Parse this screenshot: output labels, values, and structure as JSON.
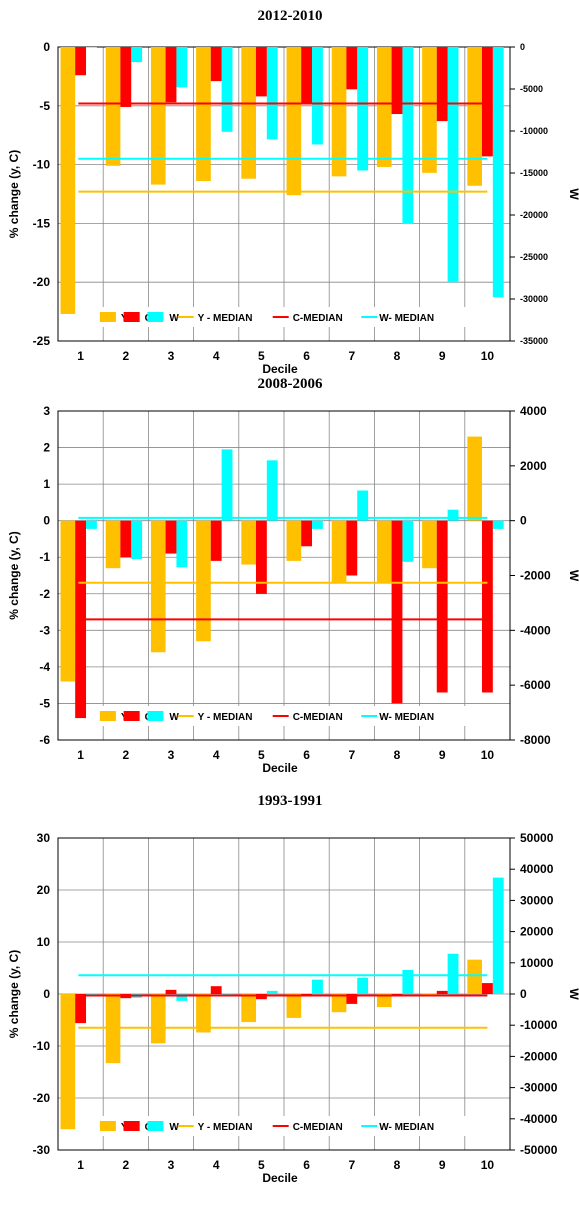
{
  "colors": {
    "Y": "#FFC000",
    "C": "#FF0000",
    "W": "#00FFFF",
    "grid": "#888888"
  },
  "chart_data": [
    {
      "type": "bar",
      "title": "2012-2010",
      "xlabel": "Decile",
      "ylabel": "% change (y, C)",
      "y2label": "W",
      "categories": [
        "1",
        "2",
        "3",
        "4",
        "5",
        "6",
        "7",
        "8",
        "9",
        "10"
      ],
      "ylim": [
        -25,
        0
      ],
      "yticks": [
        0,
        -5,
        -10,
        -15,
        -20,
        -25
      ],
      "y2lim": [
        -35000,
        0
      ],
      "y2ticks": [
        0,
        -5000,
        -10000,
        -15000,
        -20000,
        -25000,
        -30000,
        -35000
      ],
      "y2_small_font": true,
      "series": [
        {
          "name": "Y",
          "axis": "left",
          "values": [
            -22.7,
            -10.1,
            -11.7,
            -11.4,
            -11.2,
            -12.6,
            -11.0,
            -10.2,
            -10.7,
            -11.8
          ]
        },
        {
          "name": "C",
          "axis": "left",
          "values": [
            -2.4,
            -5.1,
            -4.7,
            -2.9,
            -4.2,
            -4.8,
            -3.6,
            -5.7,
            -6.3,
            -9.3
          ]
        },
        {
          "name": "W",
          "axis": "right",
          "values": [
            0,
            -1800,
            -4800,
            -10100,
            -11000,
            -11600,
            -14700,
            -21000,
            -28000,
            -29800
          ]
        }
      ],
      "medians": [
        {
          "name": "Y - MEDIAN",
          "axis": "left",
          "value": -12.3
        },
        {
          "name": "C-MEDIAN",
          "axis": "left",
          "value": -4.8
        },
        {
          "name": "W- MEDIAN",
          "axis": "right",
          "value": -13300
        }
      ],
      "legend_placement": "bottom"
    },
    {
      "type": "bar",
      "title": "2008-2006",
      "xlabel": "Decile",
      "ylabel": "% change (y, C)",
      "y2label": "W",
      "categories": [
        "1",
        "2",
        "3",
        "4",
        "5",
        "6",
        "7",
        "8",
        "9",
        "10"
      ],
      "ylim": [
        -6,
        3
      ],
      "yticks": [
        3,
        2,
        1,
        0,
        -1,
        -2,
        -3,
        -4,
        -5,
        -6
      ],
      "y2lim": [
        -8000,
        4000
      ],
      "y2ticks": [
        4000,
        2000,
        0,
        -2000,
        -4000,
        -6000,
        -8000
      ],
      "y2_small_font": false,
      "series": [
        {
          "name": "Y",
          "axis": "left",
          "values": [
            -4.4,
            -1.3,
            -3.6,
            -3.3,
            -1.2,
            -1.1,
            -1.7,
            -1.7,
            -1.3,
            2.3
          ]
        },
        {
          "name": "C",
          "axis": "left",
          "values": [
            -5.4,
            -1.0,
            -0.9,
            -1.1,
            -2.0,
            -0.7,
            -1.5,
            -5.0,
            -4.7,
            -4.7
          ]
        },
        {
          "name": "W",
          "axis": "right",
          "values": [
            -300,
            -1400,
            -1700,
            2600,
            2200,
            -300,
            1100,
            -1500,
            400,
            -300
          ]
        }
      ],
      "medians": [
        {
          "name": "Y - MEDIAN",
          "axis": "left",
          "value": -1.7
        },
        {
          "name": "C-MEDIAN",
          "axis": "left",
          "value": -2.7
        },
        {
          "name": "W- MEDIAN",
          "axis": "right",
          "value": 100
        }
      ],
      "legend_placement": "bottom"
    },
    {
      "type": "bar",
      "title": "1993-1991",
      "xlabel": "Decile",
      "ylabel": "% change (y, C)",
      "y2label": "W",
      "categories": [
        "1",
        "2",
        "3",
        "4",
        "5",
        "6",
        "7",
        "8",
        "9",
        "10"
      ],
      "ylim": [
        -30,
        30
      ],
      "yticks": [
        30,
        20,
        10,
        0,
        -10,
        -20,
        -30
      ],
      "y2lim": [
        -50000,
        50000
      ],
      "y2ticks": [
        50000,
        40000,
        30000,
        20000,
        10000,
        0,
        -10000,
        -20000,
        -30000,
        -40000,
        -50000
      ],
      "y2_small_font": false,
      "series": [
        {
          "name": "Y",
          "axis": "left",
          "values": [
            -26.0,
            -13.3,
            -9.5,
            -7.4,
            -5.4,
            -4.6,
            -3.5,
            -2.5,
            -0.4,
            6.6
          ]
        },
        {
          "name": "C",
          "axis": "left",
          "values": [
            -5.6,
            -0.8,
            0.8,
            1.5,
            -1.0,
            -0.3,
            -1.9,
            -0.4,
            0.6,
            2.1
          ]
        },
        {
          "name": "W",
          "axis": "right",
          "values": [
            -800,
            -1200,
            -2200,
            0,
            1000,
            4600,
            5200,
            7700,
            12900,
            37300
          ]
        }
      ],
      "medians": [
        {
          "name": "Y - MEDIAN",
          "axis": "left",
          "value": -6.5
        },
        {
          "name": "C-MEDIAN",
          "axis": "left",
          "value": -0.3
        },
        {
          "name": "W- MEDIAN",
          "axis": "right",
          "value": 6000
        }
      ],
      "legend_placement": "bottom"
    }
  ]
}
